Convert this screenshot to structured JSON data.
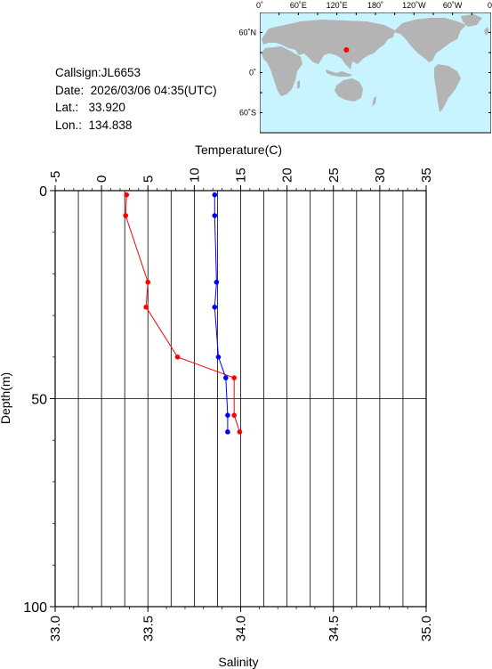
{
  "station": {
    "callsign_text": "Callsign:JL6653",
    "date_label": "Date:",
    "date_value": "2026/03/06 04:35(UTC)",
    "lat_label": "Lat.:",
    "lat_value": "33.920",
    "lon_label": "Lon.:",
    "lon_value": "134.838"
  },
  "map": {
    "top_labels": [
      "0˚",
      "60˚E",
      "120˚E",
      "180˚",
      "120˚W",
      "60˚W",
      "0˚"
    ],
    "lat_labels": [
      "60˚N",
      "0˚",
      "60˚S"
    ],
    "ocean_color": "#c8f4ff",
    "land_color": "#b4b4b4",
    "marker_color": "#ff0000",
    "marker_lon": 134.838,
    "marker_lat": 33.92
  },
  "chart_data": {
    "type": "line",
    "title": "",
    "ylabel": "Depth(m)",
    "ylim": [
      0,
      100
    ],
    "y_inverted": true,
    "yticks": [
      "0",
      "50",
      "100"
    ],
    "x_top": {
      "label": "Temperature(C)",
      "lim": [
        -5,
        35
      ],
      "ticks": [
        "-5",
        "0",
        "5",
        "10",
        "15",
        "20",
        "25",
        "30",
        "35"
      ]
    },
    "x_bottom": {
      "label": "Salinity",
      "lim": [
        33.0,
        35.0
      ],
      "ticks": [
        "33.0",
        "33.5",
        "34.0",
        "34.5",
        "35.0"
      ]
    },
    "grid": true,
    "series": [
      {
        "axis": "temperature",
        "color": "#ff0000",
        "points": [
          [
            2.7,
            1
          ],
          [
            2.6,
            6
          ],
          [
            5.0,
            22
          ],
          [
            4.8,
            28
          ],
          [
            8.2,
            40
          ],
          [
            14.3,
            45
          ],
          [
            14.3,
            54
          ],
          [
            14.9,
            58
          ]
        ]
      },
      {
        "axis": "salinity",
        "color": "#0000ff",
        "points": [
          [
            33.86,
            1
          ],
          [
            33.86,
            6
          ],
          [
            33.87,
            22
          ],
          [
            33.86,
            28
          ],
          [
            33.88,
            40
          ],
          [
            33.92,
            45
          ],
          [
            33.93,
            54
          ],
          [
            33.93,
            58
          ]
        ]
      }
    ]
  }
}
